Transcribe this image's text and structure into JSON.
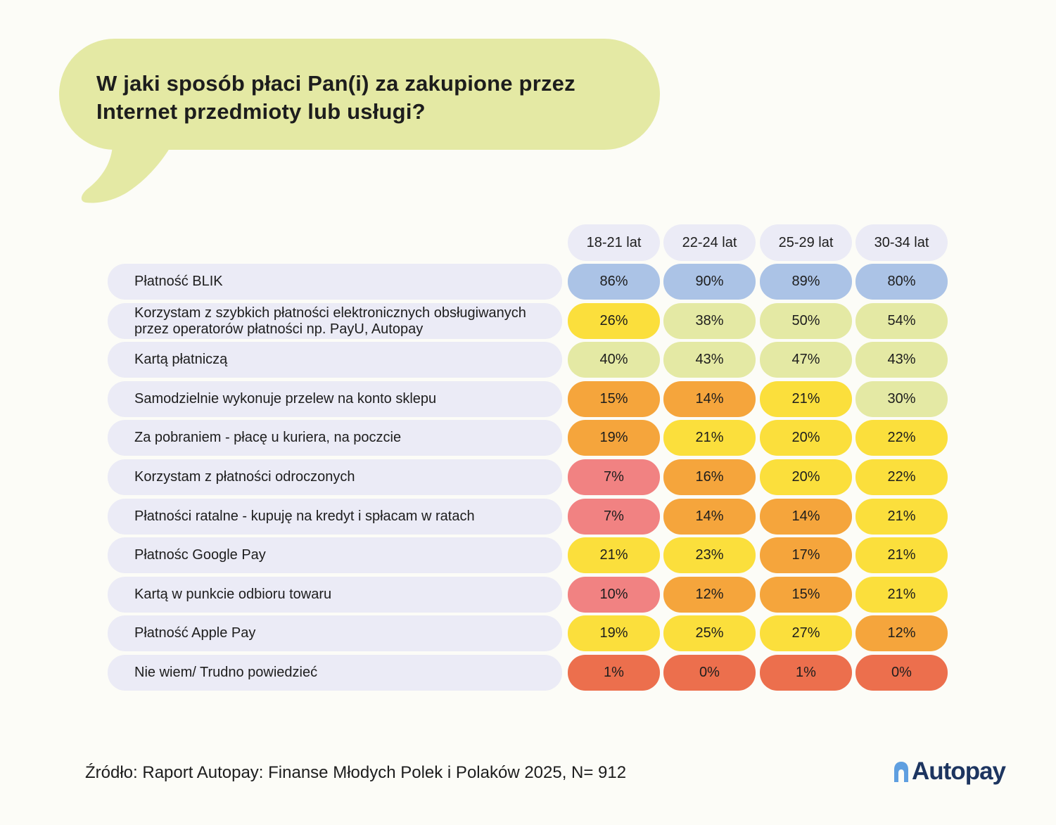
{
  "title": "W jaki sposób płaci Pan(i) za zakupione przez Internet przedmioty lub usługi?",
  "source": "Źródło: Raport Autopay: Finanse Młodych Polek i Polaków 2025, N= 912",
  "logo": {
    "text": "Autopay",
    "icon": "autopay-arch-icon",
    "color": "#1d3560"
  },
  "colors": {
    "background": "#fcfcf7",
    "bubble": "#e4e9a4",
    "label_bg": "#ebebf6",
    "scale": {
      "blue": "#abc3e6",
      "green": "#e4e9a4",
      "yellow": "#fbdf3c",
      "orange": "#f5a53c",
      "pink": "#f18282",
      "red": "#ec6f4d"
    }
  },
  "chart_data": {
    "type": "table",
    "title": "W jaki sposób płaci Pan(i) za zakupione przez Internet przedmioty lub usługi?",
    "columns": [
      "18-21 lat",
      "22-24 lat",
      "25-29 lat",
      "30-34 lat"
    ],
    "rows": [
      {
        "label": "Płatność BLIK",
        "values": [
          "86%",
          "90%",
          "89%",
          "80%"
        ],
        "colors": [
          "blue",
          "blue",
          "blue",
          "blue"
        ]
      },
      {
        "label": "Korzystam z szybkich płatności elektronicznych obsługiwanych przez operatorów płatności np. PayU, Autopay",
        "values": [
          "26%",
          "38%",
          "50%",
          "54%"
        ],
        "colors": [
          "yellow",
          "green",
          "green",
          "green"
        ]
      },
      {
        "label": "Kartą płatniczą",
        "values": [
          "40%",
          "43%",
          "47%",
          "43%"
        ],
        "colors": [
          "green",
          "green",
          "green",
          "green"
        ]
      },
      {
        "label": "Samodzielnie wykonuje przelew na konto sklepu",
        "values": [
          "15%",
          "14%",
          "21%",
          "30%"
        ],
        "colors": [
          "orange",
          "orange",
          "yellow",
          "green"
        ]
      },
      {
        "label": "Za pobraniem - płacę u kuriera, na poczcie",
        "values": [
          "19%",
          "21%",
          "20%",
          "22%"
        ],
        "colors": [
          "orange",
          "yellow",
          "yellow",
          "yellow"
        ]
      },
      {
        "label": "Korzystam z płatności odroczonych",
        "values": [
          "7%",
          "16%",
          "20%",
          "22%"
        ],
        "colors": [
          "pink",
          "orange",
          "yellow",
          "yellow"
        ]
      },
      {
        "label": "Płatności ratalne - kupuję na kredyt i spłacam w ratach",
        "values": [
          "7%",
          "14%",
          "14%",
          "21%"
        ],
        "colors": [
          "pink",
          "orange",
          "orange",
          "yellow"
        ]
      },
      {
        "label": "Płatnośc Google Pay",
        "values": [
          "21%",
          "23%",
          "17%",
          "21%"
        ],
        "colors": [
          "yellow",
          "yellow",
          "orange",
          "yellow"
        ]
      },
      {
        "label": "Kartą w punkcie odbioru towaru",
        "values": [
          "10%",
          "12%",
          "15%",
          "21%"
        ],
        "colors": [
          "pink",
          "orange",
          "orange",
          "yellow"
        ]
      },
      {
        "label": "Płatność Apple Pay",
        "values": [
          "19%",
          "25%",
          "27%",
          "12%"
        ],
        "colors": [
          "yellow",
          "yellow",
          "yellow",
          "orange"
        ]
      },
      {
        "label": "Nie wiem/ Trudno powiedzieć",
        "values": [
          "1%",
          "0%",
          "1%",
          "0%"
        ],
        "colors": [
          "red",
          "red",
          "red",
          "red"
        ]
      }
    ]
  }
}
